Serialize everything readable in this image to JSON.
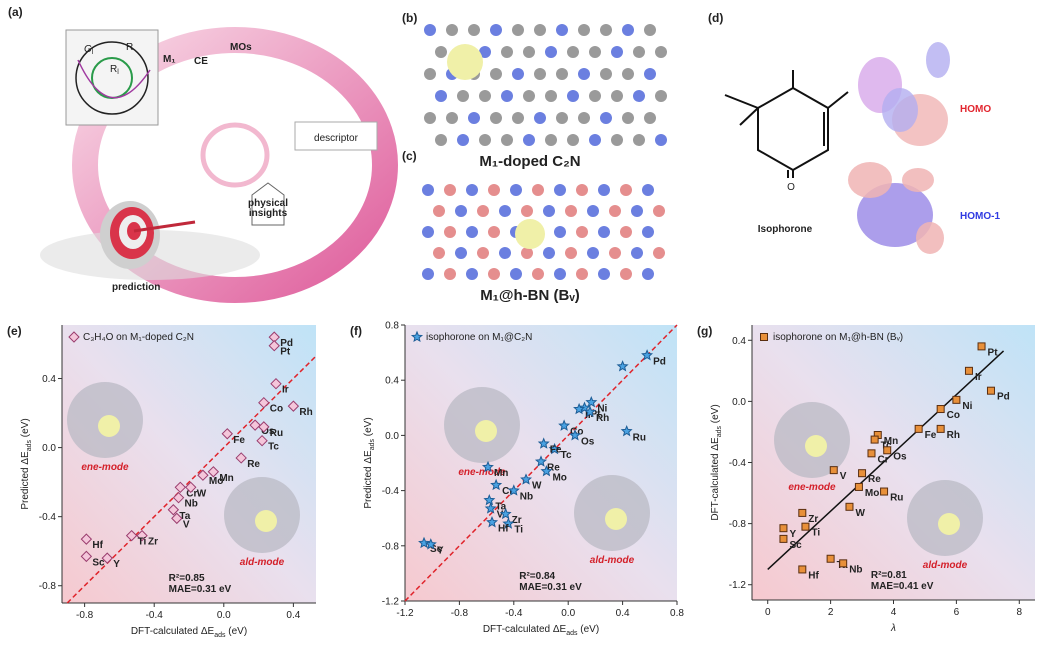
{
  "figure": {
    "a": {
      "panel": "(a)",
      "card_g": "G",
      "card_g_sub": "l",
      "card_r": "R",
      "card_rl": "R",
      "card_rl_sub": "l",
      "m1": "M₁",
      "ce": "CE",
      "mos": "MOs",
      "descriptor": "descriptor",
      "insights": [
        "physical",
        "insights"
      ],
      "prediction": "prediction"
    },
    "b": {
      "panel": "(b)",
      "caption": "M₁-doped C₂N"
    },
    "c": {
      "panel": "(c)",
      "caption": "M₁@h-BN (Bᵥ)"
    },
    "d": {
      "panel": "(d)",
      "oxygen": "O",
      "molecule": "Isophorone",
      "homo": "HOMO",
      "homo1": "HOMO-1"
    }
  },
  "chart_data": [
    {
      "type": "scatter",
      "panel": "(e)",
      "legend": "C₃H₄O on M₁-doped C₂N",
      "marker": "diamond",
      "color": "#f4c6da",
      "xlabel": [
        "DFT-calculated ΔE",
        "ads",
        " (eV)"
      ],
      "ylabel": [
        "Predicted ΔE",
        "ads",
        " (eV)"
      ],
      "categories": [
        "Pd",
        "Pt",
        "Ir",
        "Rh",
        "Co",
        "Os",
        "Ru",
        "Tc",
        "Fe",
        "Re",
        "Mn",
        "Mo",
        "Cr",
        "W",
        "Nb",
        "Ta",
        "V",
        "Zr",
        "Ti",
        "Hf",
        "Sc",
        "Y"
      ],
      "x": [
        0.29,
        0.29,
        0.3,
        0.4,
        0.23,
        0.18,
        0.23,
        0.22,
        0.02,
        0.1,
        -0.06,
        -0.12,
        -0.25,
        -0.19,
        -0.26,
        -0.29,
        -0.27,
        -0.47,
        -0.53,
        -0.79,
        -0.79,
        -0.67
      ],
      "y": [
        0.64,
        0.59,
        0.37,
        0.24,
        0.26,
        0.13,
        0.12,
        0.04,
        0.08,
        -0.06,
        -0.14,
        -0.16,
        -0.23,
        -0.23,
        -0.29,
        -0.36,
        -0.41,
        -0.51,
        -0.51,
        -0.53,
        -0.63,
        -0.64
      ],
      "xlim": [
        -0.93,
        0.53
      ],
      "ylim": [
        -0.9,
        0.71
      ],
      "xticks": [
        -0.8,
        -0.4,
        {
          "value": 0,
          "label": "0.0"
        },
        0.4
      ],
      "yticks": [
        -0.8,
        -0.4,
        {
          "value": 0,
          "label": "0.0"
        },
        0.4
      ],
      "diagonal": true,
      "annotations": [
        "R²=0.85",
        "MAE=0.31 eV"
      ],
      "insets": [
        "ene-mode",
        "ald-mode"
      ]
    },
    {
      "type": "scatter",
      "panel": "(f)",
      "legend": "isophorone on M₁@C₂N",
      "marker": "star",
      "color": "#4aa2e2",
      "xlabel": [
        "DFT-calculated ΔE",
        "ads",
        " (eV)"
      ],
      "ylabel": [
        "Predicted ΔE",
        "ads",
        " (eV)"
      ],
      "categories": [
        "Pd",
        null,
        "Ni",
        "Pt",
        "Ir",
        "Rh",
        "Ru",
        "Co",
        "Os",
        "Tc",
        "Fe",
        "Re",
        "Mn",
        "Mo",
        "Cr",
        "W",
        "Nb",
        "Ta",
        "V",
        "Zr",
        "Ti",
        "Hf",
        "Sc",
        "Y"
      ],
      "x": [
        0.58,
        0.4,
        0.17,
        0.12,
        0.08,
        0.16,
        0.43,
        -0.03,
        0.05,
        -0.1,
        -0.18,
        -0.2,
        -0.59,
        -0.16,
        -0.53,
        -0.31,
        -0.4,
        -0.58,
        -0.57,
        -0.46,
        -0.44,
        -0.56,
        -1.06,
        -1.01
      ],
      "y": [
        0.58,
        0.5,
        0.24,
        0.2,
        0.19,
        0.17,
        0.03,
        0.07,
        0.0,
        -0.1,
        -0.06,
        -0.19,
        -0.23,
        -0.26,
        -0.36,
        -0.32,
        -0.4,
        -0.47,
        -0.53,
        -0.57,
        -0.64,
        -0.63,
        -0.78,
        -0.79
      ],
      "xlim": [
        -1.2,
        0.8
      ],
      "ylim": [
        -1.2,
        0.8
      ],
      "xticks": [
        -1.2,
        -0.8,
        -0.4,
        {
          "value": 0,
          "label": "0.0"
        },
        0.4,
        0.8
      ],
      "yticks": [
        -1.2,
        -0.8,
        -0.4,
        {
          "value": 0,
          "label": "0.0"
        },
        0.4,
        0.8
      ],
      "diagonal": true,
      "annotations": [
        "R²=0.84",
        "MAE=0.31 eV"
      ],
      "insets": [
        "ene-mode",
        "ald-mode"
      ]
    },
    {
      "type": "scatter",
      "panel": "(g)",
      "legend": "isophorone on M₁@h-BN (Bᵥ)",
      "marker": "square",
      "color": "#e8903a",
      "xlabel": [
        "λ"
      ],
      "ylabel": [
        "DFT-calculated ΔE",
        "ads",
        " (eV)"
      ],
      "categories": [
        "Pt",
        "Ir",
        "Pd",
        "Ni",
        "Co",
        "Rh",
        "Fe",
        "Mn",
        "Tc",
        "Cr",
        "Os",
        "Re",
        "V",
        "Mo",
        "W",
        "Ru",
        "Zr",
        "Ti",
        "Y",
        "Sc",
        "Hf",
        "Ta",
        "Nb"
      ],
      "x": [
        6.8,
        6.4,
        7.1,
        6.0,
        5.5,
        5.5,
        4.8,
        3.5,
        3.4,
        3.3,
        3.8,
        3.0,
        2.1,
        2.9,
        2.6,
        3.7,
        1.1,
        1.2,
        0.5,
        0.5,
        1.1,
        2.0,
        2.4
      ],
      "y": [
        0.36,
        0.2,
        0.07,
        0.01,
        -0.05,
        -0.18,
        -0.18,
        -0.22,
        -0.25,
        -0.34,
        -0.32,
        -0.47,
        -0.45,
        -0.56,
        -0.69,
        -0.59,
        -0.73,
        -0.82,
        -0.83,
        -0.9,
        -1.1,
        -1.03,
        -1.06
      ],
      "xlim": [
        -0.5,
        8.5
      ],
      "ylim": [
        -1.3,
        0.5
      ],
      "xticks": [
        0,
        2,
        4,
        6,
        8
      ],
      "yticks": [
        -1.2,
        -0.8,
        -0.4,
        {
          "value": 0,
          "label": "0.0"
        },
        0.4
      ],
      "fit_line": {
        "x": [
          0,
          7.5
        ],
        "y": [
          -1.1,
          0.33
        ]
      },
      "annotations": [
        "R²=0.81",
        "MAE=0.41 eV"
      ],
      "insets": [
        "ene-mode",
        "ald-mode"
      ]
    }
  ]
}
